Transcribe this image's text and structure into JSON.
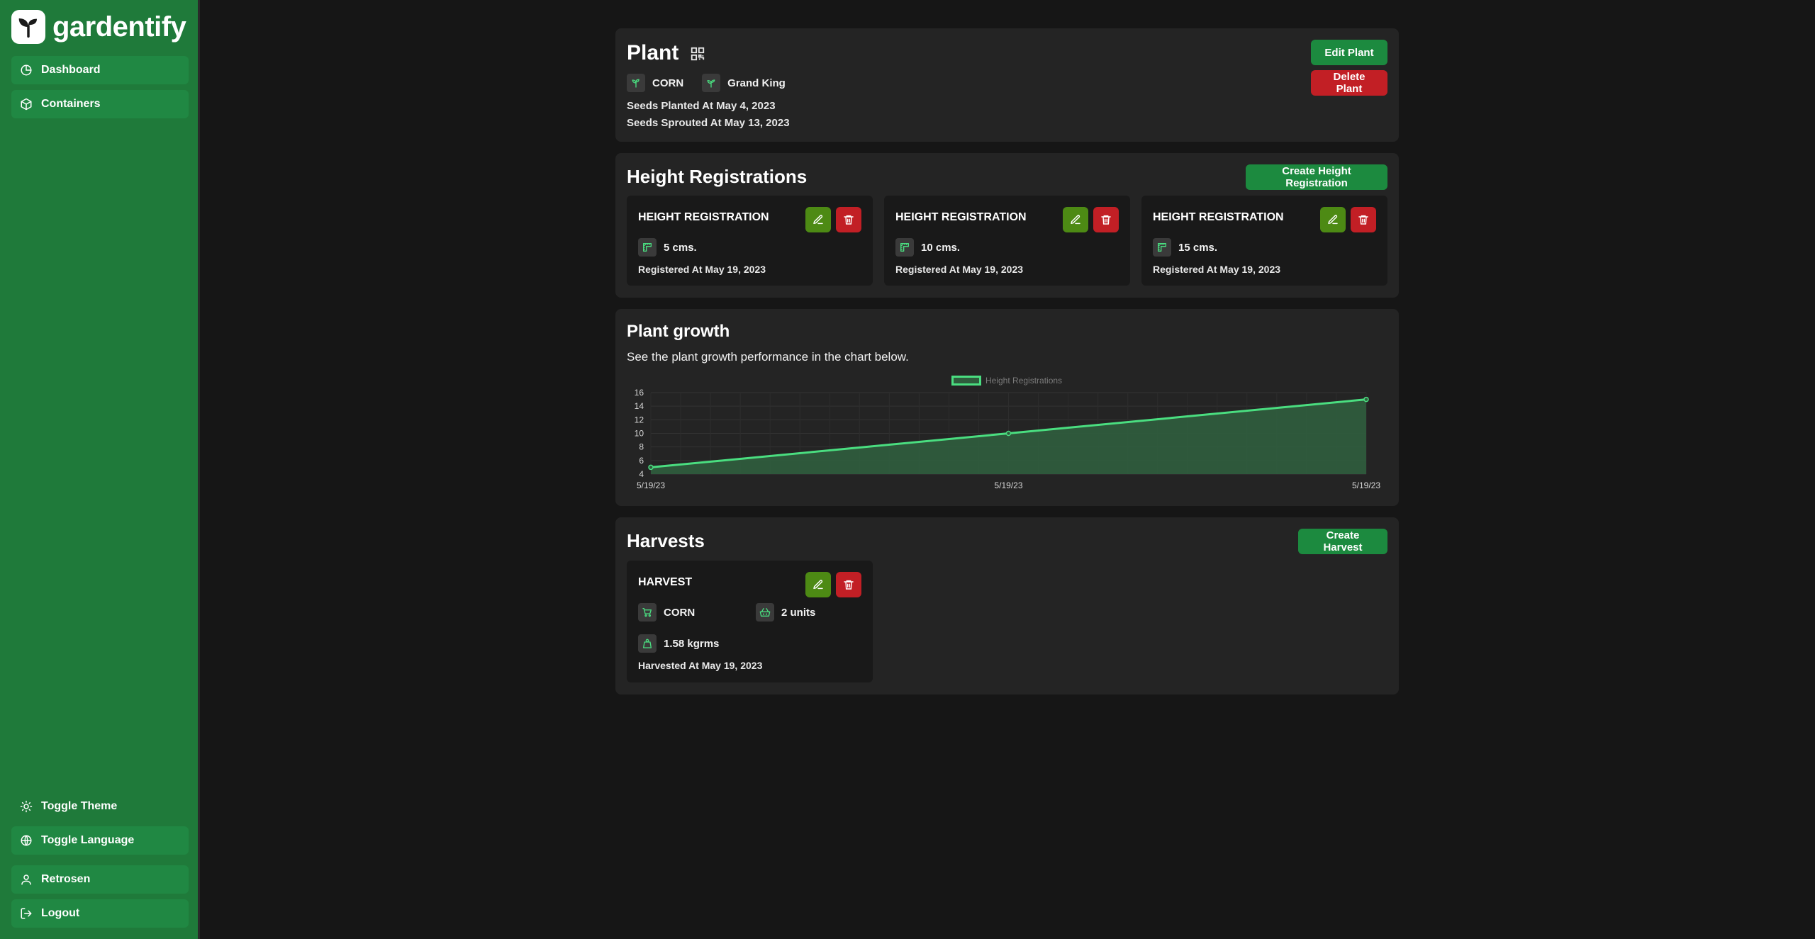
{
  "app": {
    "name": "gardentify"
  },
  "sidebar": {
    "top_items": [
      {
        "label": "Dashboard",
        "icon": "pie-chart-icon"
      },
      {
        "label": "Containers",
        "icon": "box-icon"
      }
    ],
    "bottom_items": [
      {
        "label": "Toggle Theme",
        "icon": "sun-icon"
      },
      {
        "label": "Toggle Language",
        "icon": "globe-icon"
      },
      {
        "label": "Retrosen",
        "icon": "user-icon"
      },
      {
        "label": "Logout",
        "icon": "logout-icon"
      }
    ]
  },
  "plant": {
    "title": "Plant",
    "crop": "CORN",
    "variety": "Grand King",
    "seeds_planted": "Seeds Planted At May 4, 2023",
    "seeds_sprouted": "Seeds Sprouted At May 13, 2023",
    "edit_label": "Edit Plant",
    "delete_label": "Delete Plant"
  },
  "height_registrations": {
    "title": "Height Registrations",
    "create_label": "Create Height Registration",
    "items": [
      {
        "title": "HEIGHT REGISTRATION",
        "height": "5 cms.",
        "registered": "Registered At May 19, 2023"
      },
      {
        "title": "HEIGHT REGISTRATION",
        "height": "10 cms.",
        "registered": "Registered At May 19, 2023"
      },
      {
        "title": "HEIGHT REGISTRATION",
        "height": "15 cms.",
        "registered": "Registered At May 19, 2023"
      }
    ]
  },
  "growth": {
    "title": "Plant growth",
    "subtitle": "See the plant growth performance in the chart below."
  },
  "chart_data": {
    "type": "area",
    "categories": [
      "5/19/23",
      "5/19/23",
      "5/19/23"
    ],
    "series": [
      {
        "name": "Height Registrations",
        "values": [
          5,
          10,
          15
        ]
      }
    ],
    "yticks": [
      4,
      6,
      8,
      10,
      12,
      14,
      16
    ],
    "ylim": [
      4,
      16
    ],
    "grid": true,
    "legend": "top-center",
    "colors": {
      "line": "#4ade80",
      "fill": "#2f5c3d"
    }
  },
  "harvests": {
    "title": "Harvests",
    "create_label": "Create Harvest",
    "items": [
      {
        "title": "HARVEST",
        "crop": "CORN",
        "units": "2 units",
        "weight": "1.58 kgrms",
        "harvested": "Harvested At May 19, 2023"
      }
    ]
  },
  "colors": {
    "sidebar": "#1f7a3a",
    "primary": "#1c8a3f",
    "danger": "#c21f25",
    "edit": "#4d8a14"
  }
}
